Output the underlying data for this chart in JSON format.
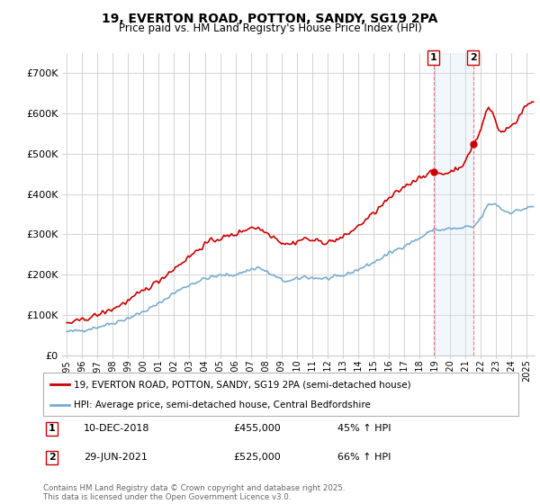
{
  "title": "19, EVERTON ROAD, POTTON, SANDY, SG19 2PA",
  "subtitle": "Price paid vs. HM Land Registry's House Price Index (HPI)",
  "legend_line1": "19, EVERTON ROAD, POTTON, SANDY, SG19 2PA (semi-detached house)",
  "legend_line2": "HPI: Average price, semi-detached house, Central Bedfordshire",
  "annotation1_label": "1",
  "annotation1_date": "10-DEC-2018",
  "annotation1_price": "£455,000",
  "annotation1_hpi": "45% ↑ HPI",
  "annotation2_label": "2",
  "annotation2_date": "29-JUN-2021",
  "annotation2_price": "£525,000",
  "annotation2_hpi": "66% ↑ HPI",
  "footnote": "Contains HM Land Registry data © Crown copyright and database right 2025.\nThis data is licensed under the Open Government Licence v3.0.",
  "red_color": "#cc0000",
  "blue_color": "#7aadcf",
  "annotation_box_color": "#cc0000",
  "shaded_region_color": "#ddeeff",
  "background_color": "#ffffff",
  "grid_color": "#cccccc",
  "ylim": [
    0,
    750000
  ],
  "yticks": [
    0,
    100000,
    200000,
    300000,
    400000,
    500000,
    600000,
    700000
  ],
  "ytick_labels": [
    "£0",
    "£100K",
    "£200K",
    "£300K",
    "£400K",
    "£500K",
    "£600K",
    "£700K"
  ],
  "sale1_x": 2018.92,
  "sale1_y": 455000,
  "sale2_x": 2021.49,
  "sale2_y": 525000,
  "xlim_left": 1994.7,
  "xlim_right": 2025.5
}
